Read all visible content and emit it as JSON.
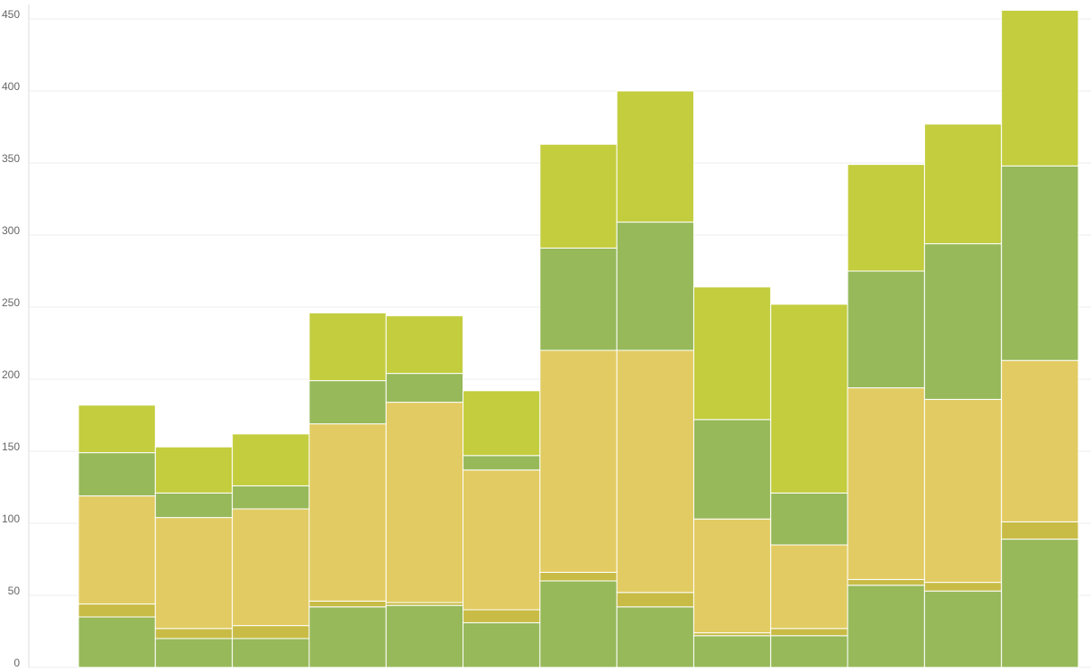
{
  "chart_data": {
    "type": "stacked-bar",
    "categories": [
      null,
      null,
      null,
      null,
      null,
      null,
      null,
      null,
      null,
      null,
      null,
      null,
      null
    ],
    "series": [
      {
        "color": "#97b95a",
        "values": [
          35,
          20,
          20,
          42,
          43,
          31,
          60,
          42,
          22,
          22,
          57,
          53,
          89
        ]
      },
      {
        "color": "#c8bc46",
        "values": [
          9,
          7,
          9,
          4,
          2,
          9,
          6,
          10,
          2,
          5,
          4,
          6,
          12
        ]
      },
      {
        "color": "#e2cb62",
        "values": [
          75,
          77,
          81,
          123,
          139,
          97,
          154,
          168,
          79,
          58,
          133,
          127,
          112
        ]
      },
      {
        "color": "#97b95a",
        "values": [
          30,
          17,
          16,
          30,
          20,
          10,
          71,
          89,
          69,
          36,
          81,
          108,
          135
        ]
      },
      {
        "color": "#c3cd3e",
        "values": [
          33,
          32,
          36,
          47,
          40,
          45,
          72,
          91,
          92,
          131,
          74,
          83,
          108
        ]
      }
    ],
    "ylim": [
      0,
      460
    ],
    "yticks": [
      0,
      50,
      100,
      150,
      200,
      250,
      300,
      350,
      400,
      450
    ],
    "grid": true
  }
}
